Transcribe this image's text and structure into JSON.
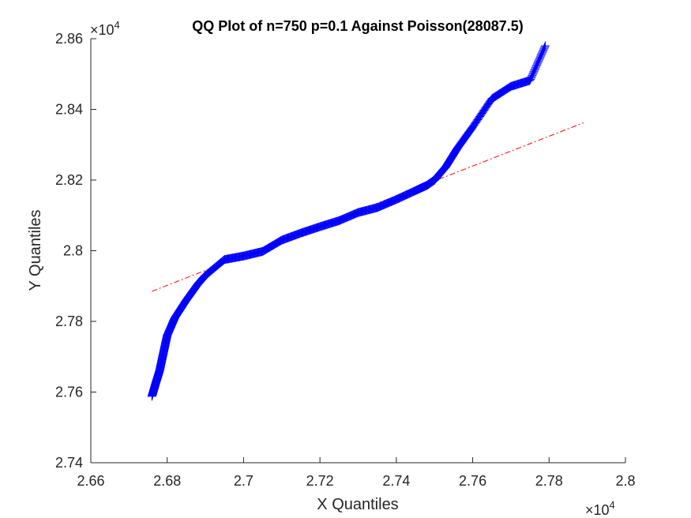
{
  "chart_data": {
    "type": "scatter",
    "title": "QQ Plot of n=750 p=0.1 Against Poisson(28087.5)",
    "xlabel": "X Quantiles",
    "ylabel": "Y Quantiles",
    "xlim": [
      26600,
      28000
    ],
    "ylim": [
      27400,
      28600
    ],
    "x_ticks": [
      26600,
      26800,
      27000,
      27200,
      27400,
      27600,
      27800,
      28000
    ],
    "y_ticks": [
      27400,
      27600,
      27800,
      28000,
      28200,
      28400,
      28600
    ],
    "x_tick_labels": [
      "2.66",
      "2.68",
      "2.7",
      "2.72",
      "2.74",
      "2.76",
      "2.78",
      "2.8"
    ],
    "y_tick_labels": [
      "2.74",
      "2.76",
      "2.78",
      "2.8",
      "2.82",
      "2.84",
      "2.86"
    ],
    "x_exponent": {
      "base": "×10",
      "power": "4"
    },
    "y_exponent": {
      "base": "×10",
      "power": "4"
    },
    "grid": false,
    "n_points": 750,
    "series": [
      {
        "marker": "+",
        "color": "#0000ff",
        "knots_x": [
          26760,
          26770,
          26780,
          26790,
          26800,
          26820,
          26850,
          26880,
          26900,
          26950,
          27000,
          27050,
          27100,
          27150,
          27200,
          27250,
          27300,
          27350,
          27400,
          27450,
          27480,
          27500,
          27530,
          27560,
          27600,
          27650,
          27700,
          27750,
          27790
        ],
        "knots_y": [
          27588,
          27625,
          27660,
          27710,
          27760,
          27810,
          27860,
          27905,
          27930,
          27975,
          27985,
          27998,
          28030,
          28050,
          28068,
          28085,
          28108,
          28122,
          28145,
          28170,
          28185,
          28200,
          28238,
          28290,
          28350,
          28430,
          28465,
          28482,
          28580
        ]
      },
      {
        "marker": "dash-dot line",
        "color": "#ff0000",
        "x": [
          26760,
          27890
        ],
        "y": [
          27885,
          28362
        ]
      }
    ]
  }
}
